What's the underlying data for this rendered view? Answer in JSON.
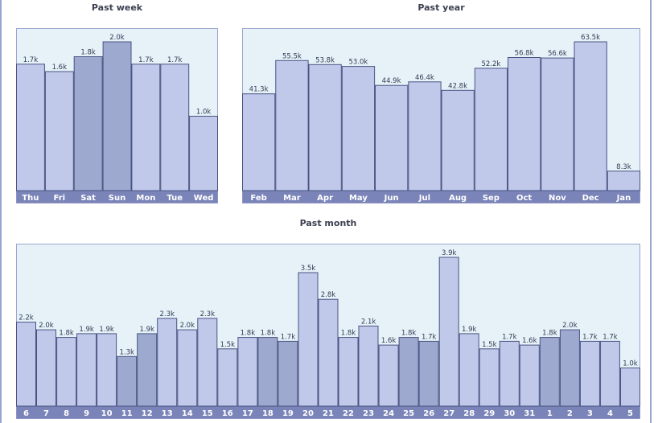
{
  "chart_data": [
    {
      "type": "bar",
      "title": "Past week",
      "categories": [
        "Thu",
        "Fri",
        "Sat",
        "Sun",
        "Mon",
        "Tue",
        "Wed"
      ],
      "values": [
        1.7,
        1.6,
        1.8,
        2.0,
        1.7,
        1.7,
        1.0
      ],
      "value_labels": [
        "1.7k",
        "1.6k",
        "1.8k",
        "2.0k",
        "1.7k",
        "1.7k",
        "1.0k"
      ],
      "highlighted": [
        "Sat",
        "Sun"
      ],
      "unit": "k",
      "ylim": [
        0,
        2.0
      ],
      "grid": false
    },
    {
      "type": "bar",
      "title": "Past year",
      "categories": [
        "Feb",
        "Mar",
        "Apr",
        "May",
        "Jun",
        "Jul",
        "Aug",
        "Sep",
        "Oct",
        "Nov",
        "Dec",
        "Jan"
      ],
      "values": [
        41.3,
        55.5,
        53.8,
        53.0,
        44.9,
        46.4,
        42.8,
        52.2,
        56.8,
        56.6,
        63.5,
        8.3
      ],
      "value_labels": [
        "41.3k",
        "55.5k",
        "53.8k",
        "53.0k",
        "44.9k",
        "46.4k",
        "42.8k",
        "52.2k",
        "56.8k",
        "56.6k",
        "63.5k",
        "8.3k"
      ],
      "highlighted": [],
      "unit": "k",
      "ylim": [
        0,
        63.5
      ],
      "grid": false
    },
    {
      "type": "bar",
      "title": "Past month",
      "categories": [
        "6",
        "7",
        "8",
        "9",
        "10",
        "11",
        "12",
        "13",
        "14",
        "15",
        "16",
        "17",
        "18",
        "19",
        "20",
        "21",
        "22",
        "23",
        "24",
        "25",
        "26",
        "27",
        "28",
        "29",
        "30",
        "31",
        "1",
        "2",
        "3",
        "4",
        "5"
      ],
      "values": [
        2.2,
        2.0,
        1.8,
        1.9,
        1.9,
        1.3,
        1.9,
        2.3,
        2.0,
        2.3,
        1.5,
        1.8,
        1.8,
        1.7,
        3.5,
        2.8,
        1.8,
        2.1,
        1.6,
        1.8,
        1.7,
        3.9,
        1.9,
        1.5,
        1.7,
        1.6,
        1.8,
        2.0,
        1.7,
        1.7,
        1.0
      ],
      "value_labels": [
        "2.2k",
        "2.0k",
        "1.8k",
        "1.9k",
        "1.9k",
        "1.3k",
        "1.9k",
        "2.3k",
        "2.0k",
        "2.3k",
        "1.5k",
        "1.8k",
        "1.8k",
        "1.7k",
        "3.5k",
        "2.8k",
        "1.8k",
        "2.1k",
        "1.6k",
        "1.8k",
        "1.7k",
        "3.9k",
        "1.9k",
        "1.5k",
        "1.7k",
        "1.6k",
        "1.8k",
        "2.0k",
        "1.7k",
        "1.7k",
        "1.0k"
      ],
      "highlighted": [
        "11",
        "12",
        "18",
        "19",
        "25",
        "26",
        "1",
        "2"
      ],
      "unit": "k",
      "ylim": [
        0,
        3.9
      ],
      "grid": false
    }
  ],
  "colors": {
    "plot_background": "#e6f2f8",
    "bar_fill": "#c0c9ea",
    "bar_fill_highlighted": "#9ea9cf",
    "bar_stroke": "#4a5382",
    "axis_band": "#7a84b8",
    "frame": "#9aa6cf"
  }
}
